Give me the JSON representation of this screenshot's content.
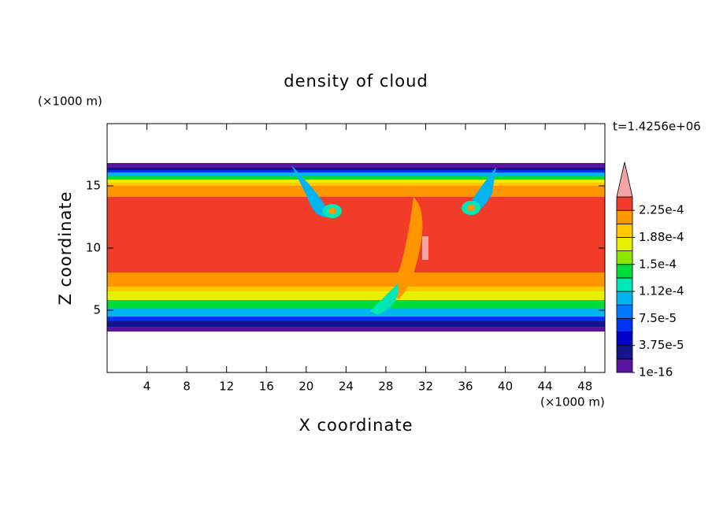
{
  "chart_data": {
    "type": "contour",
    "title": "density of cloud",
    "xlabel": "X coordinate",
    "ylabel": "Z coordinate",
    "xlabel_unit": "(×1000 m)",
    "ylabel_unit": "(×1000 m)",
    "annotation": "t=1.4256e+06",
    "xlim": [
      0,
      50
    ],
    "ylim": [
      0,
      20
    ],
    "xticks": [
      4,
      8,
      12,
      16,
      20,
      24,
      28,
      32,
      36,
      40,
      44,
      48
    ],
    "yticks": [
      5,
      10,
      15
    ],
    "colorbar": {
      "levels": [
        1e-16,
        1.875e-05,
        3.75e-05,
        5.625e-05,
        7.5e-05,
        9.375e-05,
        0.0001125,
        0.00013125,
        0.00015,
        0.00016875,
        0.0001875,
        0.00020625,
        0.000225,
        0.00024375
      ],
      "colors": [
        "#5a14a0",
        "#14148c",
        "#0000c8",
        "#0032f0",
        "#0078ff",
        "#00b4f0",
        "#00e6b4",
        "#00dc3c",
        "#8ce600",
        "#e6f000",
        "#ffc800",
        "#ff9600",
        "#f03c28"
      ],
      "extend_color": "#f4a4a4",
      "ticks": [
        {
          "value": 1e-16,
          "label": "1e-16"
        },
        {
          "value": 3.75e-05,
          "label": "3.75e-5"
        },
        {
          "value": 7.5e-05,
          "label": "7.5e-5"
        },
        {
          "value": 0.0001125,
          "label": "1.12e-4"
        },
        {
          "value": 0.00015,
          "label": "1.5e-4"
        },
        {
          "value": 0.0001875,
          "label": "1.88e-4"
        },
        {
          "value": 0.000225,
          "label": "2.25e-4"
        }
      ]
    }
  }
}
